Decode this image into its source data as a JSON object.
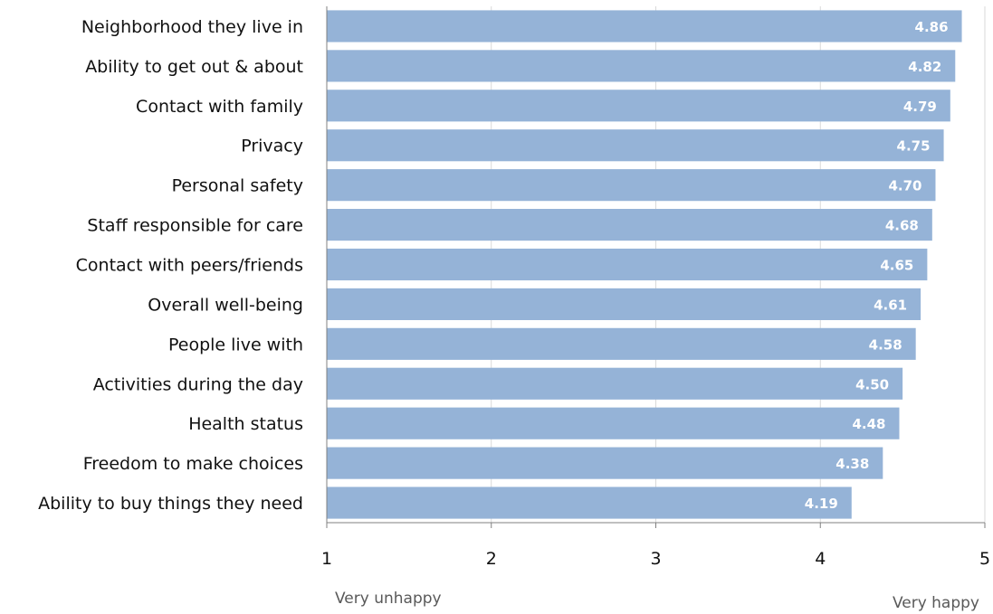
{
  "chart_data": {
    "type": "bar",
    "orientation": "horizontal",
    "categories": [
      "Neighborhood they live in",
      "Ability to get out & about",
      "Contact with family",
      "Privacy",
      "Personal safety",
      "Staff responsible for care",
      "Contact with peers/friends",
      "Overall well-being",
      "People live with",
      "Activities during the day",
      "Health status",
      "Freedom to make choices",
      "Ability to buy things they need"
    ],
    "values": [
      4.86,
      4.82,
      4.79,
      4.75,
      4.7,
      4.68,
      4.65,
      4.61,
      4.58,
      4.5,
      4.48,
      4.38,
      4.19
    ],
    "data_labels": [
      "4.86",
      "4.82",
      "4.79",
      "4.75",
      "4.70",
      "4.68",
      "4.65",
      "4.61",
      "4.58",
      "4.50",
      "4.48",
      "4.38",
      "4.19"
    ],
    "title": "",
    "xlabel": "",
    "ylabel": "",
    "xlim": [
      1,
      5
    ],
    "x_ticks": [
      "1",
      "2",
      "3",
      "4",
      "5"
    ],
    "scale_end_labels": {
      "low": "Very unhappy",
      "high": "Very happy"
    },
    "grid": "vertical",
    "legend": "none",
    "colors": {
      "bar": "#95b3d7",
      "grid": "#d9d9d9",
      "axis": "#808080"
    }
  }
}
